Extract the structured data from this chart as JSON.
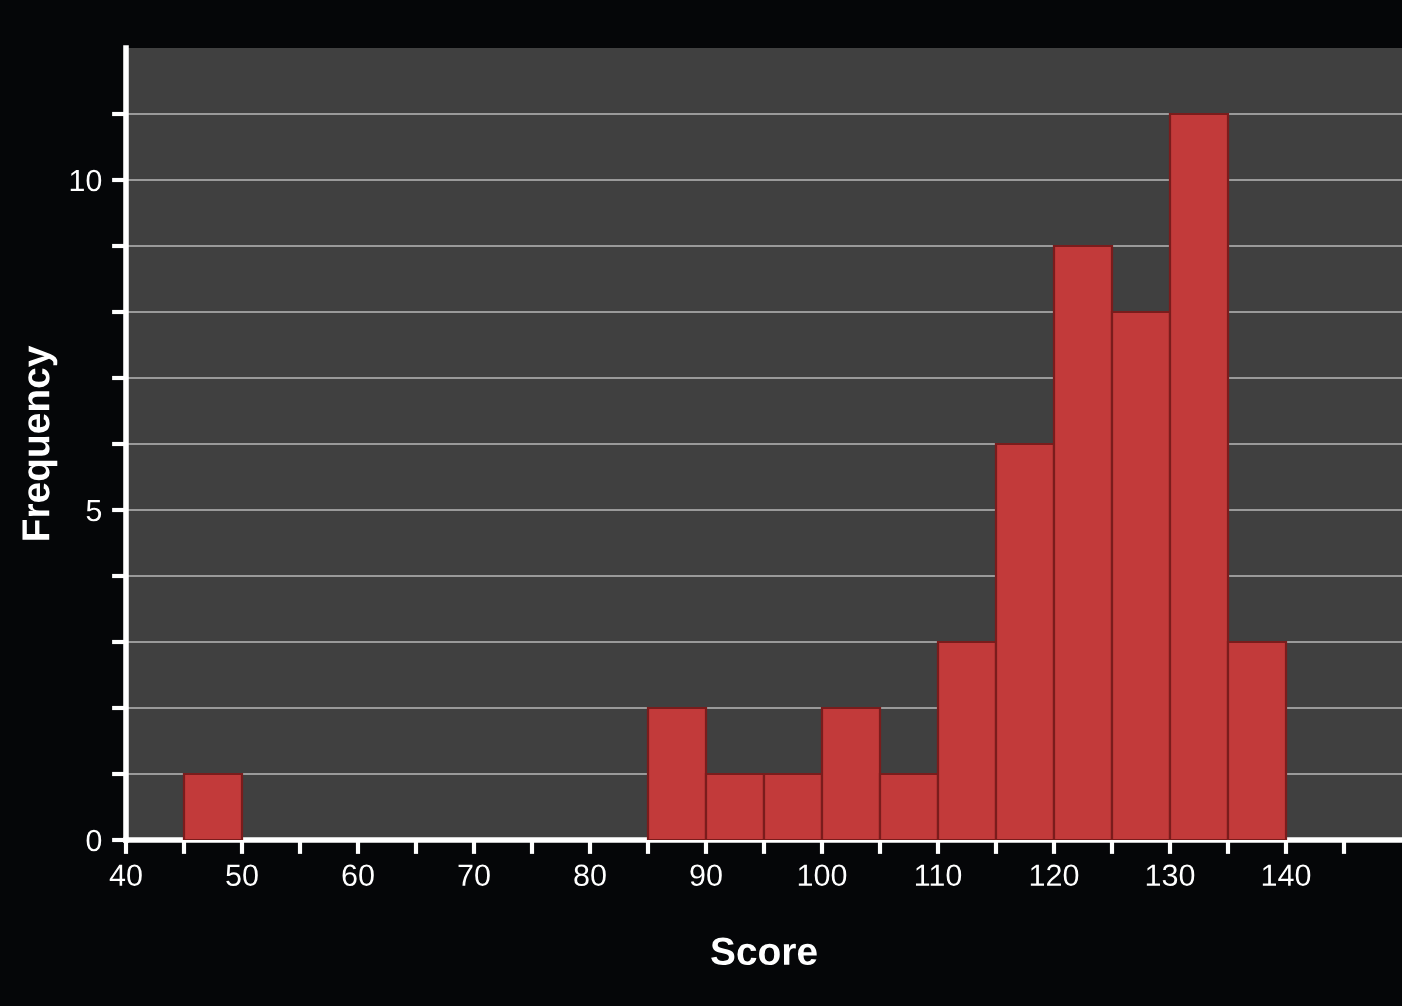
{
  "chart_data": {
    "type": "histogram",
    "xlabel": "Score",
    "ylabel": "Frequency",
    "bins": [
      45,
      50,
      55,
      60,
      65,
      70,
      75,
      80,
      85,
      90,
      95,
      100,
      105,
      110,
      115,
      120,
      125,
      130,
      135,
      140
    ],
    "values": [
      1,
      0,
      0,
      0,
      0,
      0,
      0,
      0,
      2,
      1,
      1,
      2,
      1,
      3,
      6,
      9,
      8,
      11,
      3
    ],
    "color": "#c23a3a",
    "xlim": [
      40,
      150
    ],
    "ylim": [
      0,
      12
    ],
    "xticks": [
      40,
      {
        "value": 45,
        "label": null
      },
      50,
      {
        "value": 55,
        "label": null
      },
      60,
      {
        "value": 65,
        "label": null
      },
      70,
      {
        "value": 75,
        "label": null
      },
      80,
      {
        "value": 85,
        "label": null
      },
      90,
      {
        "value": 95,
        "label": null
      },
      100,
      {
        "value": 105,
        "label": null
      },
      110,
      {
        "value": 115,
        "label": null
      },
      120,
      {
        "value": 125,
        "label": null
      },
      130,
      {
        "value": 135,
        "label": null
      },
      140,
      {
        "value": 145,
        "label": null
      }
    ],
    "yticks": [
      0,
      {
        "value": 1,
        "label": null
      },
      {
        "value": 2,
        "label": null
      },
      {
        "value": 3,
        "label": null
      },
      {
        "value": 4,
        "label": null
      },
      5,
      {
        "value": 6,
        "label": null
      },
      {
        "value": 7,
        "label": null
      },
      {
        "value": 8,
        "label": null
      },
      {
        "value": 9,
        "label": null
      },
      10,
      {
        "value": 11,
        "label": null
      }
    ],
    "grid": "y"
  }
}
